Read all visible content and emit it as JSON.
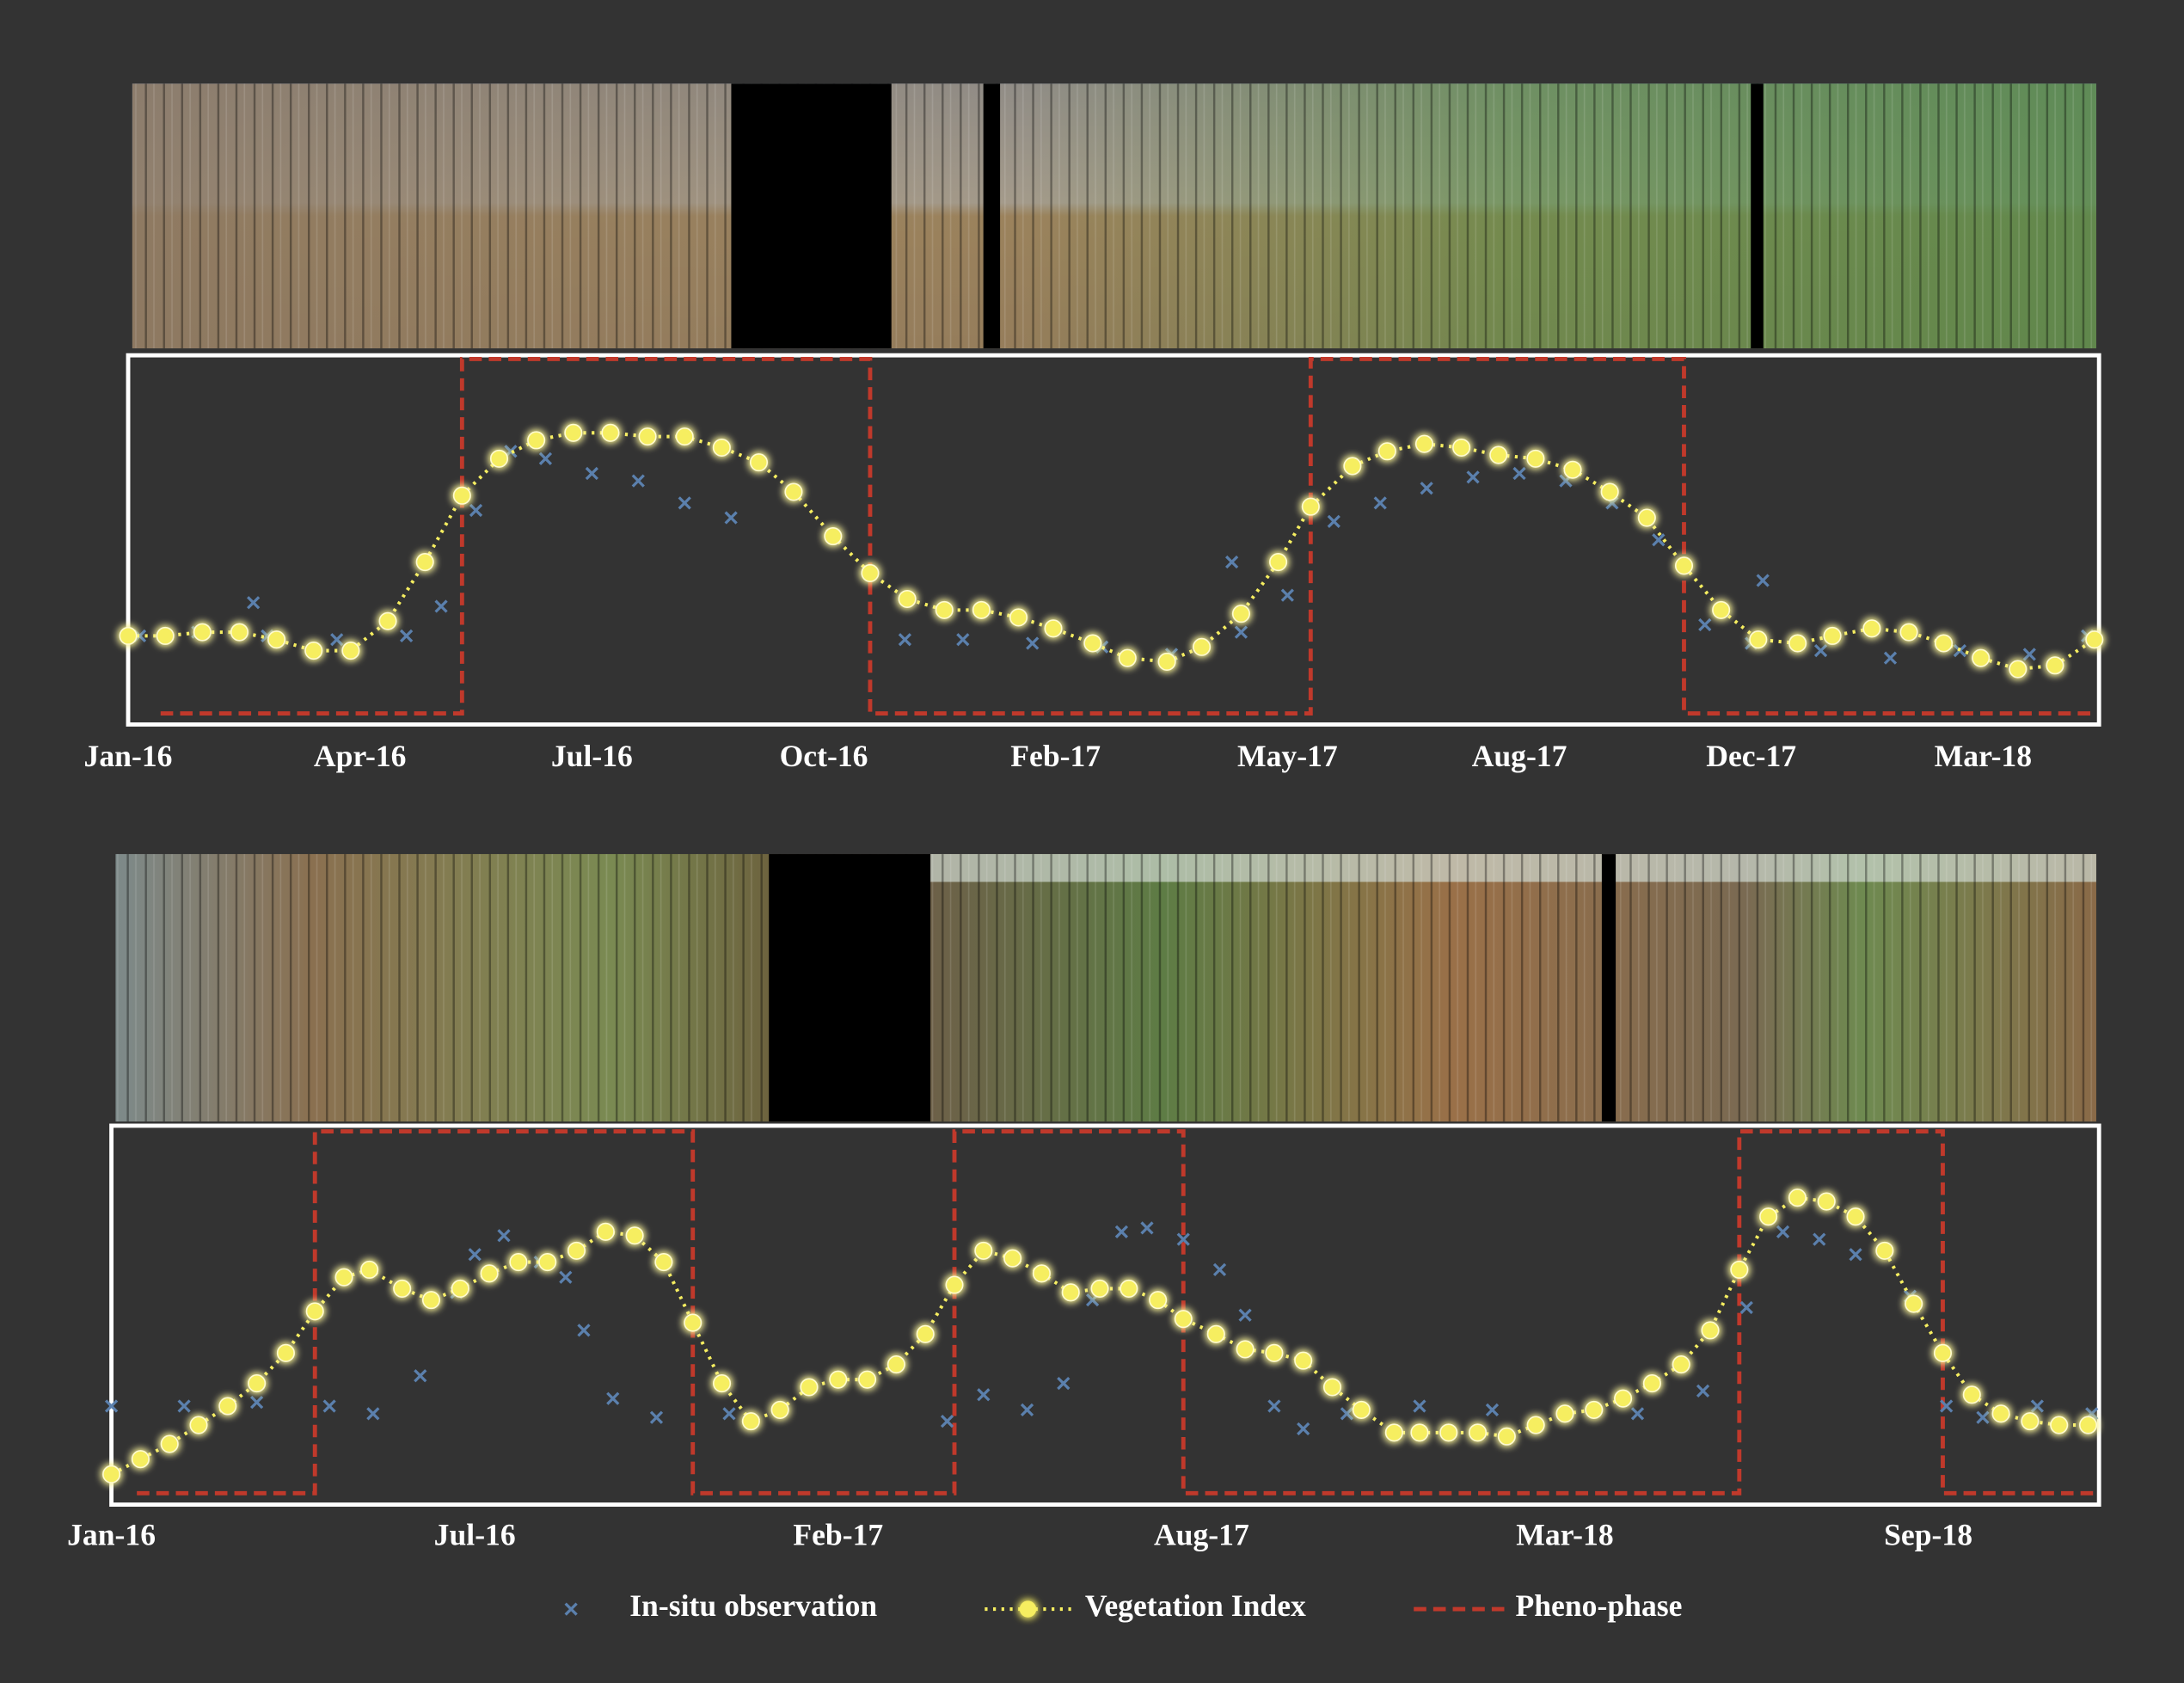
{
  "chart_data": [
    {
      "type": "line",
      "xlim": [
        0,
        8.5
      ],
      "ylim": [
        0,
        1
      ],
      "xticks": [
        {
          "value": 0,
          "label": "Jan-16"
        },
        {
          "value": 1,
          "label": "Apr-16"
        },
        {
          "value": 2,
          "label": "Jul-16"
        },
        {
          "value": 3,
          "label": "Oct-16"
        },
        {
          "value": 4,
          "label": "Feb-17"
        },
        {
          "value": 5,
          "label": "May-17"
        },
        {
          "value": 6,
          "label": "Aug-17"
        },
        {
          "value": 7,
          "label": "Dec-17"
        },
        {
          "value": 8,
          "label": "Mar-18"
        }
      ],
      "series": [
        {
          "type": "scatter",
          "color": "#5b80ad",
          "x": [
            0.05,
            0.3,
            0.6,
            0.9,
            1.2,
            1.35,
            1.5,
            1.65,
            1.8,
            2.0,
            2.2,
            2.4,
            2.6,
            3.35,
            3.6,
            3.9,
            4.2,
            4.5,
            4.8,
            5.0,
            5.2,
            5.4,
            5.6,
            5.8,
            6.0,
            6.2,
            6.4,
            6.6,
            6.8,
            7.0,
            7.3,
            7.6,
            7.9,
            8.2,
            8.45,
            0.54,
            4.76,
            7.05
          ],
          "values": [
            0.24,
            0.25,
            0.24,
            0.23,
            0.24,
            0.32,
            0.58,
            0.74,
            0.72,
            0.68,
            0.66,
            0.6,
            0.56,
            0.23,
            0.23,
            0.22,
            0.21,
            0.19,
            0.25,
            0.35,
            0.55,
            0.6,
            0.64,
            0.67,
            0.68,
            0.66,
            0.6,
            0.5,
            0.27,
            0.22,
            0.2,
            0.18,
            0.2,
            0.19,
            0.24,
            0.33,
            0.44,
            0.39
          ]
        },
        {
          "type": "line",
          "color": "#f6ee60",
          "x": [
            0,
            0.16,
            0.32,
            0.48,
            0.64,
            0.8,
            0.96,
            1.12,
            1.28,
            1.44,
            1.6,
            1.76,
            1.92,
            2.08,
            2.24,
            2.4,
            2.56,
            2.72,
            2.87,
            3.04,
            3.2,
            3.36,
            3.52,
            3.68,
            3.84,
            3.99,
            4.16,
            4.31,
            4.48,
            4.63,
            4.8,
            4.96,
            5.1,
            5.28,
            5.43,
            5.59,
            5.75,
            5.91,
            6.07,
            6.23,
            6.39,
            6.55,
            6.71,
            6.87,
            7.03,
            7.2,
            7.35,
            7.52,
            7.68,
            7.83,
            7.99,
            8.15,
            8.31,
            8.48
          ],
          "values": [
            0.24,
            0.24,
            0.25,
            0.25,
            0.23,
            0.2,
            0.2,
            0.28,
            0.44,
            0.62,
            0.72,
            0.77,
            0.79,
            0.79,
            0.78,
            0.78,
            0.75,
            0.71,
            0.63,
            0.51,
            0.41,
            0.34,
            0.31,
            0.31,
            0.29,
            0.26,
            0.22,
            0.18,
            0.17,
            0.21,
            0.3,
            0.44,
            0.59,
            0.7,
            0.74,
            0.76,
            0.75,
            0.73,
            0.72,
            0.69,
            0.63,
            0.56,
            0.43,
            0.31,
            0.23,
            0.22,
            0.24,
            0.26,
            0.25,
            0.22,
            0.18,
            0.15,
            0.16,
            0.23
          ]
        },
        {
          "type": "step",
          "color": "#c0392b",
          "x": [
            0.14,
            1.44,
            1.44,
            3.2,
            3.2,
            5.1,
            5.1,
            6.71,
            6.71,
            8.48
          ],
          "values": [
            0.03,
            0.03,
            0.99,
            0.99,
            0.03,
            0.03,
            0.99,
            0.99,
            0.03,
            0.03
          ]
        }
      ]
    },
    {
      "type": "line",
      "xlim": [
        0,
        5.47
      ],
      "ylim": [
        0,
        1
      ],
      "legend": "bottom",
      "xticks": [
        {
          "value": 0,
          "label": "Jan-16"
        },
        {
          "value": 1,
          "label": "Jul-16"
        },
        {
          "value": 2,
          "label": "Feb-17"
        },
        {
          "value": 3,
          "label": "Aug-17"
        },
        {
          "value": 4,
          "label": "Mar-18"
        },
        {
          "value": 5,
          "label": "Sep-18"
        }
      ],
      "series": [
        {
          "name": "In-situ observation",
          "type": "scatter",
          "color": "#5b80ad",
          "x": [
            0.0,
            0.2,
            0.4,
            0.6,
            0.72,
            0.85,
            0.95,
            1.0,
            1.08,
            1.18,
            1.25,
            1.3,
            1.38,
            1.5,
            1.7,
            2.3,
            2.4,
            2.52,
            2.62,
            2.7,
            2.78,
            2.85,
            2.95,
            3.05,
            3.12,
            3.2,
            3.28,
            3.4,
            3.6,
            3.8,
            4.0,
            4.2,
            4.38,
            4.5,
            4.6,
            4.7,
            4.8,
            4.95,
            5.05,
            5.15,
            5.3,
            5.45
          ],
          "values": [
            0.26,
            0.26,
            0.27,
            0.26,
            0.24,
            0.34,
            0.56,
            0.66,
            0.71,
            0.64,
            0.6,
            0.46,
            0.28,
            0.23,
            0.24,
            0.22,
            0.29,
            0.25,
            0.32,
            0.54,
            0.72,
            0.73,
            0.7,
            0.62,
            0.5,
            0.26,
            0.2,
            0.24,
            0.26,
            0.25,
            0.24,
            0.24,
            0.3,
            0.52,
            0.72,
            0.7,
            0.66,
            0.55,
            0.26,
            0.23,
            0.26,
            0.24
          ]
        },
        {
          "name": "Vegetation Index",
          "type": "line",
          "color": "#f6ee60",
          "x": [
            0,
            0.08,
            0.16,
            0.24,
            0.32,
            0.4,
            0.48,
            0.56,
            0.64,
            0.71,
            0.8,
            0.88,
            0.96,
            1.04,
            1.12,
            1.2,
            1.28,
            1.36,
            1.44,
            1.52,
            1.6,
            1.68,
            1.76,
            1.84,
            1.92,
            2.0,
            2.08,
            2.16,
            2.24,
            2.32,
            2.4,
            2.48,
            2.56,
            2.64,
            2.72,
            2.8,
            2.88,
            2.95,
            3.04,
            3.12,
            3.2,
            3.28,
            3.36,
            3.44,
            3.53,
            3.6,
            3.68,
            3.76,
            3.84,
            3.92,
            4.0,
            4.08,
            4.16,
            4.24,
            4.32,
            4.4,
            4.48,
            4.56,
            4.64,
            4.72,
            4.8,
            4.88,
            4.96,
            5.04,
            5.12,
            5.2,
            5.28,
            5.36,
            5.44
          ],
          "values": [
            0.08,
            0.12,
            0.16,
            0.21,
            0.26,
            0.32,
            0.4,
            0.51,
            0.6,
            0.62,
            0.57,
            0.54,
            0.57,
            0.61,
            0.64,
            0.64,
            0.67,
            0.72,
            0.71,
            0.64,
            0.48,
            0.32,
            0.22,
            0.25,
            0.31,
            0.33,
            0.33,
            0.37,
            0.45,
            0.58,
            0.67,
            0.65,
            0.61,
            0.56,
            0.57,
            0.57,
            0.54,
            0.49,
            0.45,
            0.41,
            0.4,
            0.38,
            0.31,
            0.25,
            0.19,
            0.19,
            0.19,
            0.19,
            0.18,
            0.21,
            0.24,
            0.25,
            0.28,
            0.32,
            0.37,
            0.46,
            0.62,
            0.76,
            0.81,
            0.8,
            0.76,
            0.67,
            0.53,
            0.4,
            0.29,
            0.24,
            0.22,
            0.21,
            0.21
          ]
        },
        {
          "name": "Pheno-phase",
          "type": "step",
          "color": "#c0392b",
          "x": [
            0.07,
            0.56,
            0.56,
            1.6,
            1.6,
            2.32,
            2.32,
            2.95,
            2.95,
            4.48,
            4.48,
            5.04,
            5.04,
            5.47
          ],
          "values": [
            0.03,
            0.03,
            0.985,
            0.985,
            0.03,
            0.03,
            0.985,
            0.985,
            0.03,
            0.03,
            0.985,
            0.985,
            0.03,
            0.03
          ]
        }
      ]
    }
  ]
}
